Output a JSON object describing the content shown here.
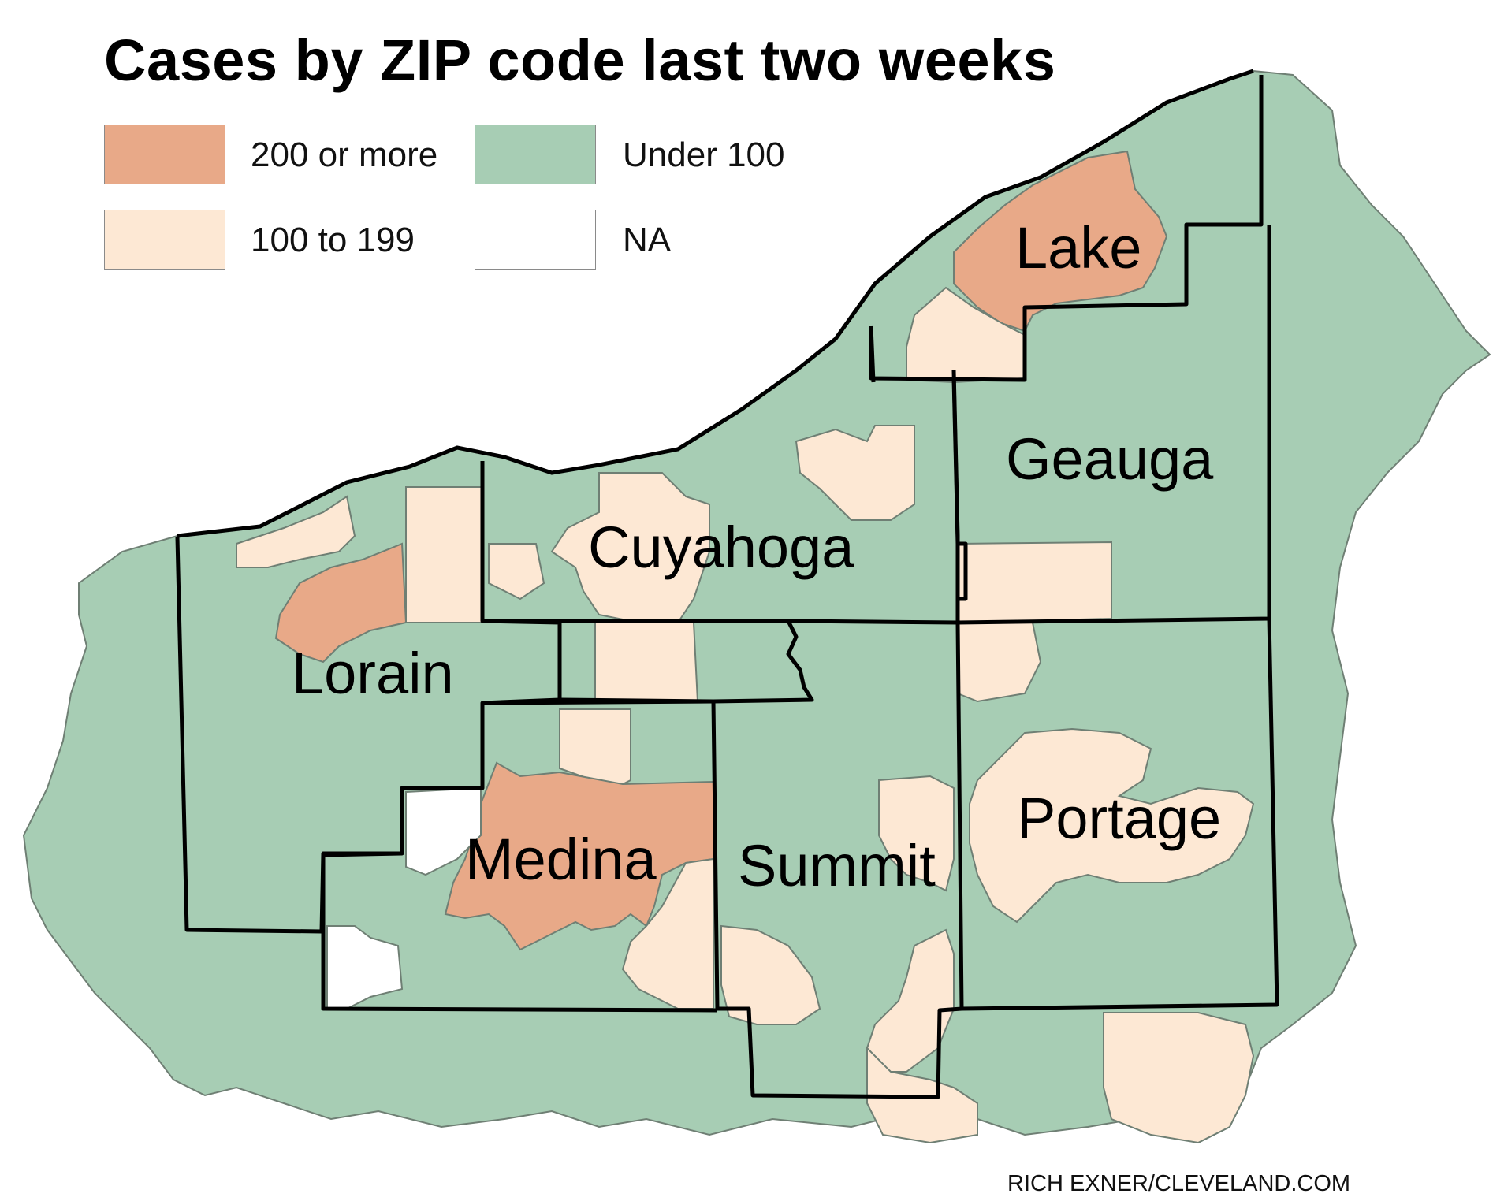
{
  "title": "Cases by ZIP code last two weeks",
  "legend": {
    "items": [
      {
        "label": "200 or more",
        "color": "#e8a988"
      },
      {
        "label": "Under 100",
        "color": "#a7cdb4"
      },
      {
        "label": "100 to 199",
        "color": "#fde8d4"
      },
      {
        "label": "NA",
        "color": "#ffffff"
      }
    ]
  },
  "counties": [
    "Lake",
    "Geauga",
    "Cuyahoga",
    "Lorain",
    "Medina",
    "Summit",
    "Portage"
  ],
  "credit": "RICH EXNER/CLEVELAND.COM",
  "colors": {
    "water": "#ffffff",
    "county_border": "#000000",
    "zip_border": "#6f7f74"
  }
}
